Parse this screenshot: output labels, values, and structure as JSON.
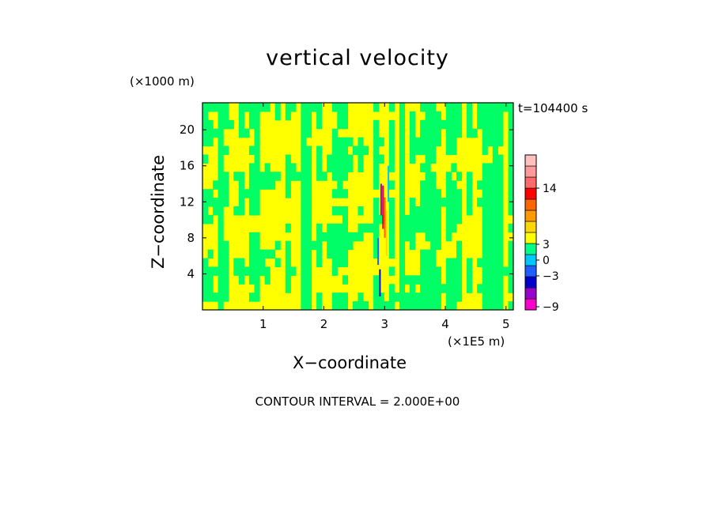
{
  "chart_data": {
    "type": "heatmap",
    "title": "vertical velocity",
    "xlabel": "X−coordinate",
    "ylabel": "Z−coordinate",
    "x_unit": "(×1E5 m)",
    "y_unit": "(×1000 m)",
    "time_label": "t=104400 s",
    "annotation": "CONTOUR INTERVAL = 2.000E+00",
    "xlim": [
      0,
      5.12
    ],
    "ylim": [
      0,
      23
    ],
    "x_ticks": [
      "1",
      "2",
      "3",
      "4",
      "5"
    ],
    "x_tick_values": [
      1,
      2,
      3,
      4,
      5
    ],
    "y_ticks": [
      "4",
      "8",
      "12",
      "16",
      "20"
    ],
    "y_tick_values": [
      4,
      8,
      12,
      16,
      20
    ],
    "grid": false,
    "colorbar": {
      "labels": [
        "14",
        "3",
        "0",
        "−3",
        "−9"
      ],
      "label_values": [
        14,
        3,
        0,
        -3,
        -9
      ],
      "colors": [
        "#ff00cc",
        "#9900cc",
        "#0000cc",
        "#1f5fff",
        "#00c8ff",
        "#00ff88",
        "#ffff00",
        "#ffd700",
        "#ff9900",
        "#ff6600",
        "#ff0000",
        "#ff6a6a",
        "#ff9a9a",
        "#ffc0c0"
      ],
      "background_field_colors": [
        "#00ff66",
        "#ffff00"
      ]
    }
  }
}
